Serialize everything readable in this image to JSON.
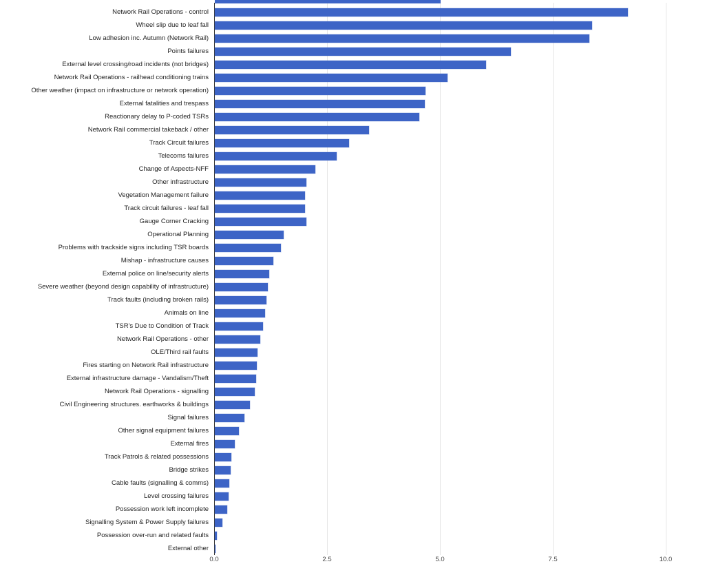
{
  "chart_data": {
    "type": "bar",
    "orientation": "horizontal",
    "title": "",
    "xlabel": "",
    "ylabel": "",
    "legend": "none",
    "grid": true,
    "xlim": [
      0,
      10
    ],
    "x_ticks": [
      "0.0",
      "2.5",
      "5.0",
      "7.5",
      "10.0"
    ],
    "x_tick_values": [
      0,
      2.5,
      5,
      7.5,
      10
    ],
    "bar_color": "#3d64c6",
    "gridline_color": "#e6e6e6",
    "axis_color": "#333333",
    "clipped_top_bar_value": 5.0,
    "categories": [
      "Network Rail Operations - control",
      "Wheel slip due to leaf fall",
      "Low adhesion inc. Autumn (Network Rail)",
      "Points failures",
      "External level crossing/road incidents (not bridges)",
      "Network Rail Operations - railhead conditioning trains",
      "Other weather (impact on infrastructure or network operation)",
      "External fatalities and trespass",
      "Reactionary delay to P-coded TSRs",
      "Network Rail commercial takeback / other",
      "Track Circuit failures",
      "Telecoms failures",
      "Change of Aspects-NFF",
      "Other infrastructure",
      "Vegetation Management failure",
      "Track circuit failures - leaf fall",
      "Gauge Corner Cracking",
      "Operational Planning",
      "Problems with trackside signs including TSR boards",
      "Mishap - infrastructure causes",
      "External police on line/security alerts",
      "Severe weather (beyond design capability of infrastructure)",
      "Track faults (including broken rails)",
      "Animals on line",
      "TSR's Due to Condition of Track",
      "Network Rail Operations - other",
      "OLE/Third rail faults",
      "Fires starting on Network Rail infrastructure",
      "External infrastructure damage - Vandalism/Theft",
      "Network Rail Operations - signalling",
      "Civil Engineering structures. earthworks & buildings",
      "Signal failures",
      "Other signal equipment failures",
      "External fires",
      "Track Patrols & related possessions",
      "Bridge strikes",
      "Cable faults (signalling & comms)",
      "Level crossing failures",
      "Possession work left incomplete",
      "Signalling System & Power Supply failures",
      "Possession over-run and related faults",
      "External other"
    ],
    "values": [
      9.15,
      8.35,
      8.3,
      6.55,
      6.0,
      5.15,
      4.67,
      4.65,
      4.52,
      3.42,
      2.98,
      2.7,
      2.22,
      2.02,
      2.0,
      2.0,
      2.02,
      1.52,
      1.47,
      1.3,
      1.21,
      1.18,
      1.15,
      1.12,
      1.06,
      1.0,
      0.95,
      0.93,
      0.91,
      0.88,
      0.77,
      0.65,
      0.53,
      0.44,
      0.36,
      0.35,
      0.32,
      0.31,
      0.28,
      0.17,
      0.05,
      0.02
    ]
  }
}
